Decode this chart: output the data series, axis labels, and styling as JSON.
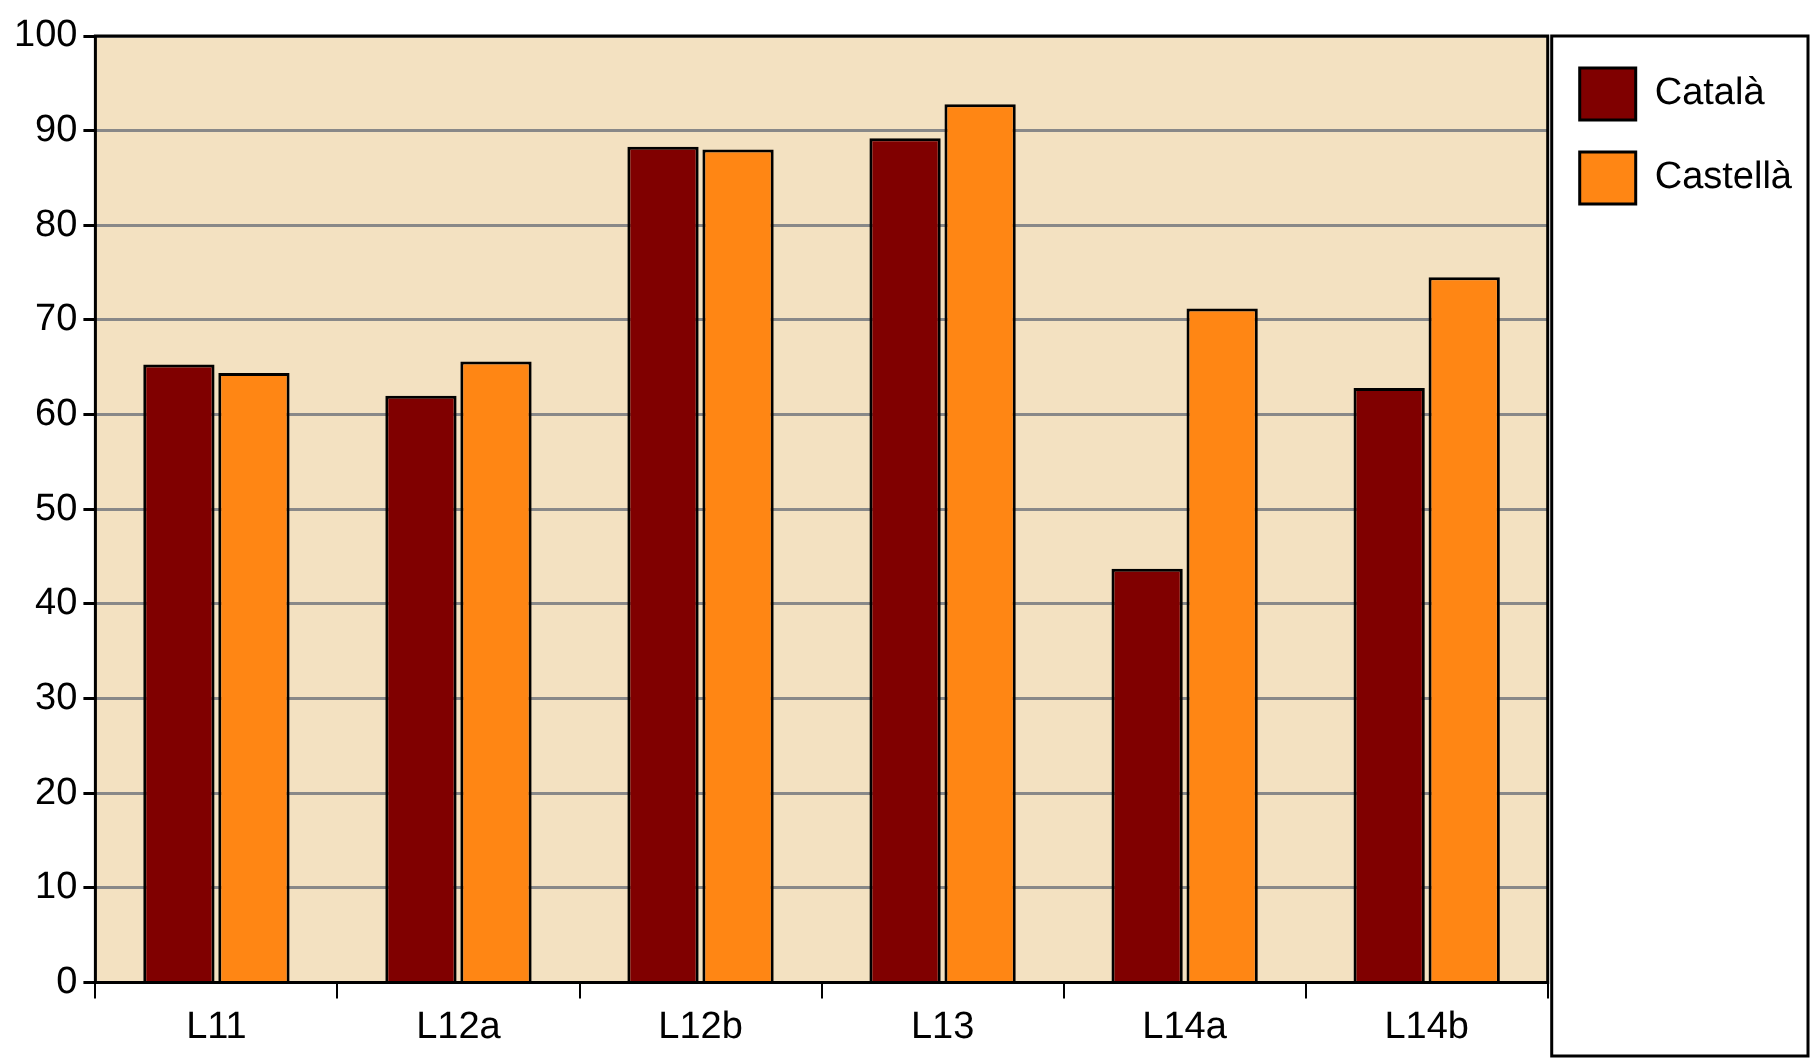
{
  "chart_data": {
    "type": "bar",
    "categories": [
      "L11",
      "L12a",
      "L12b",
      "L13",
      "L14a",
      "L14b"
    ],
    "series": [
      {
        "name": "Català",
        "color": "#800000",
        "values": [
          65.3,
          62.0,
          88.3,
          89.2,
          43.7,
          62.8
        ]
      },
      {
        "name": "Castellà",
        "color": "#ff8614",
        "values": [
          64.4,
          65.6,
          88.0,
          92.8,
          71.2,
          74.5
        ]
      }
    ],
    "ylim": [
      0,
      100
    ],
    "yticks": [
      0,
      10,
      20,
      30,
      40,
      50,
      60,
      70,
      80,
      90,
      100
    ],
    "grid": "y",
    "legend": "top right"
  }
}
